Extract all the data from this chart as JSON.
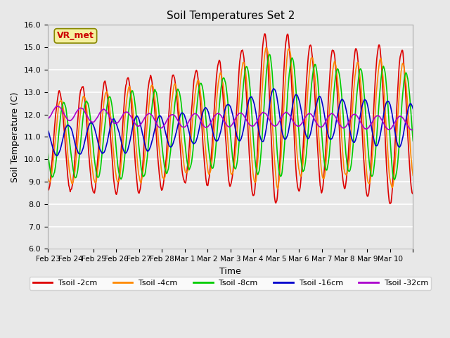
{
  "title": "Soil Temperatures Set 2",
  "xlabel": "Time",
  "ylabel": "Soil Temperature (C)",
  "ylim": [
    6.0,
    16.0
  ],
  "yticks": [
    6.0,
    7.0,
    8.0,
    9.0,
    10.0,
    11.0,
    12.0,
    13.0,
    14.0,
    15.0,
    16.0
  ],
  "background_color": "#e0e0e0",
  "plot_bg_color": "#e8e8e8",
  "grid_color": "#ffffff",
  "annotation_text": "VR_met",
  "annotation_bg": "#f5f0a0",
  "annotation_border": "#888800",
  "annotation_text_color": "#cc0000",
  "series": {
    "Tsoil -2cm": {
      "color": "#dd0000",
      "lw": 1.2
    },
    "Tsoil -4cm": {
      "color": "#ff8800",
      "lw": 1.2
    },
    "Tsoil -8cm": {
      "color": "#00cc00",
      "lw": 1.2
    },
    "Tsoil -16cm": {
      "color": "#0000cc",
      "lw": 1.2
    },
    "Tsoil -32cm": {
      "color": "#aa00cc",
      "lw": 1.2
    }
  },
  "xtick_labels": [
    "Feb 23",
    "Feb 24",
    "Feb 25",
    "Feb 26",
    "Feb 27",
    "Feb 28",
    "Mar 1",
    "Mar 2",
    "Mar 3",
    "Mar 4",
    "Mar 5",
    "Mar 6",
    "Mar 7",
    "Mar 8",
    "Mar 9",
    "Mar 10"
  ],
  "n_days": 16,
  "pts_per_day": 48
}
